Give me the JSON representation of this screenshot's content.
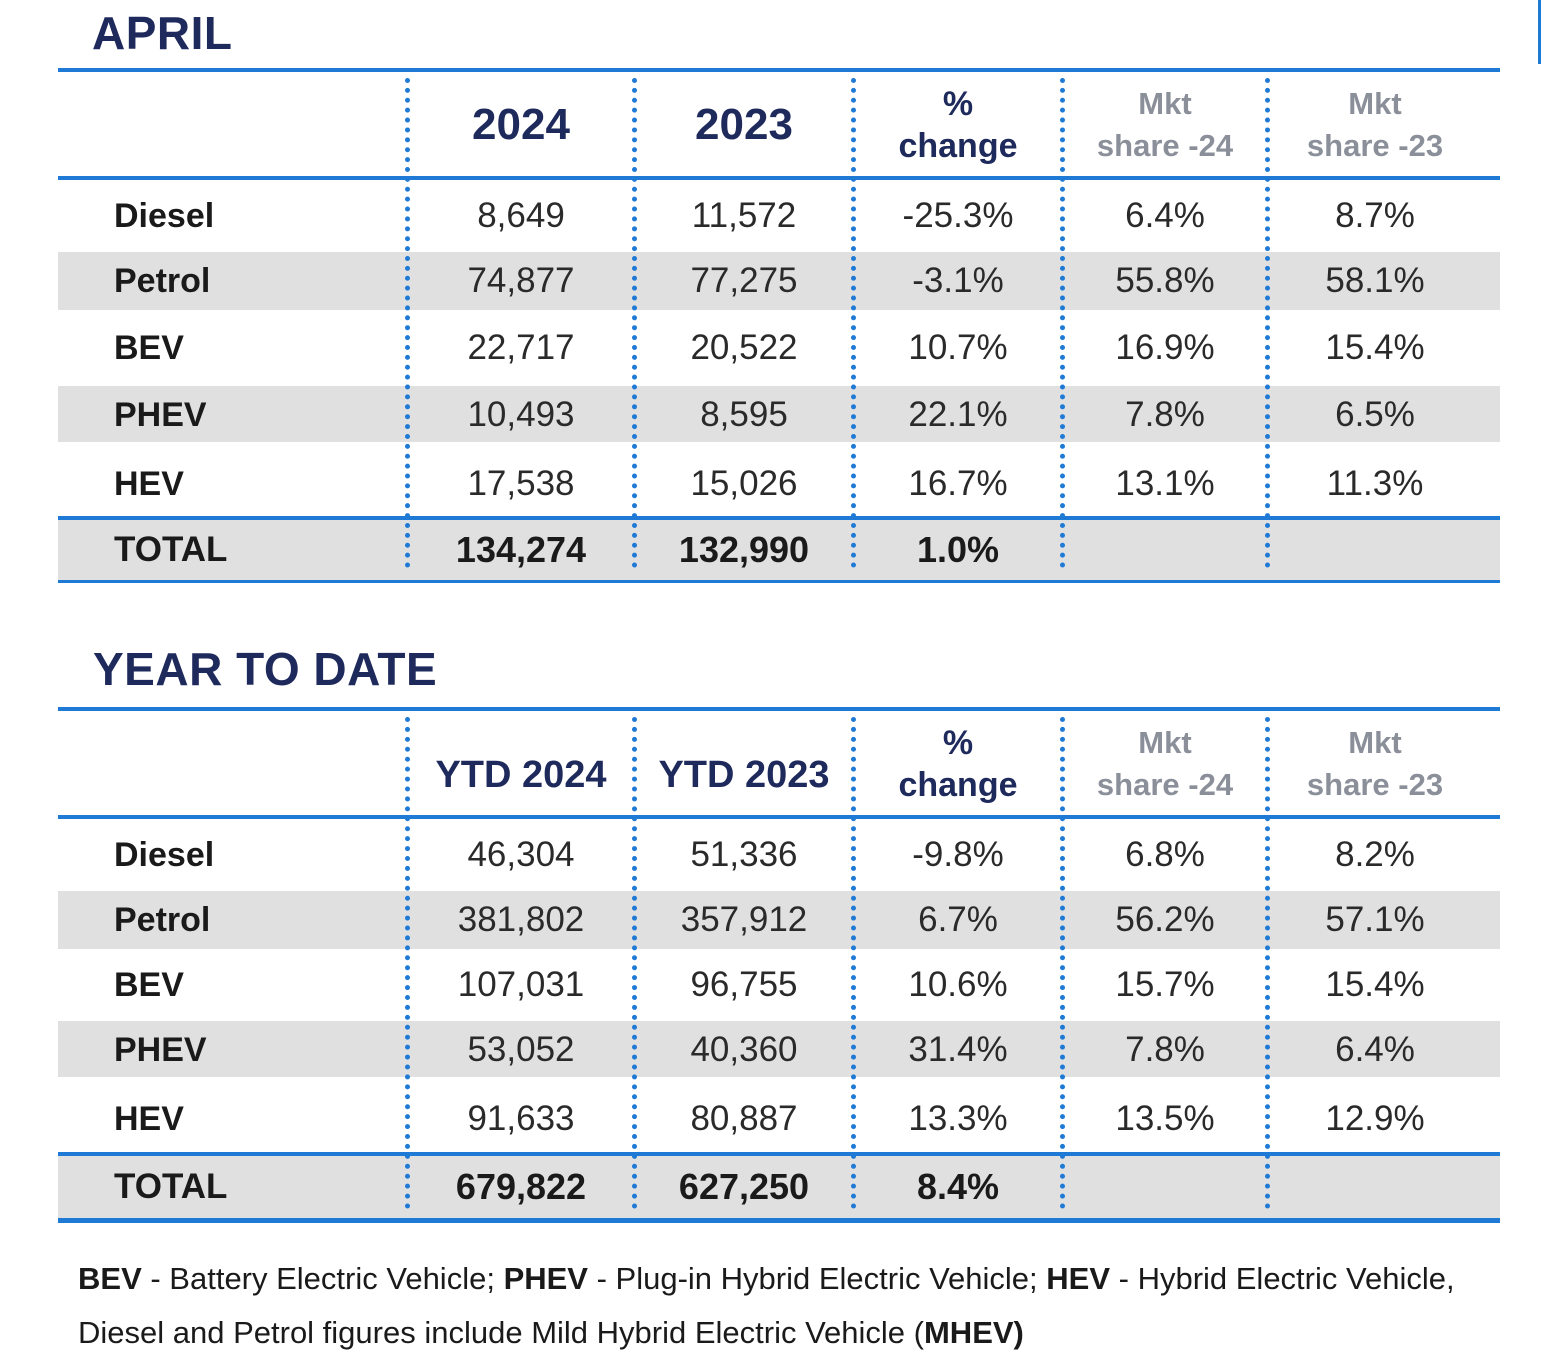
{
  "april": {
    "title": "APRIL",
    "headers": {
      "col1": "2024",
      "col2": "2023",
      "pct_line1": "%",
      "pct_line2": "change",
      "mkt24_line1": "Mkt",
      "mkt24_line2": "share -24",
      "mkt23_line1": "Mkt",
      "mkt23_line2": "share -23"
    },
    "rows": [
      {
        "label": "Diesel",
        "v2024": "8,649",
        "v2023": "11,572",
        "change": "-25.3%",
        "share24": "6.4%",
        "share23": "8.7%"
      },
      {
        "label": "Petrol",
        "v2024": "74,877",
        "v2023": "77,275",
        "change": "-3.1%",
        "share24": "55.8%",
        "share23": "58.1%"
      },
      {
        "label": "BEV",
        "v2024": "22,717",
        "v2023": "20,522",
        "change": "10.7%",
        "share24": "16.9%",
        "share23": "15.4%"
      },
      {
        "label": "PHEV",
        "v2024": "10,493",
        "v2023": "8,595",
        "change": "22.1%",
        "share24": "7.8%",
        "share23": "6.5%"
      },
      {
        "label": "HEV",
        "v2024": "17,538",
        "v2023": "15,026",
        "change": "16.7%",
        "share24": "13.1%",
        "share23": "11.3%"
      }
    ],
    "total": {
      "label": "TOTAL",
      "v2024": "134,274",
      "v2023": "132,990",
      "change": "1.0%"
    }
  },
  "ytd": {
    "title": "YEAR TO DATE",
    "headers": {
      "col1": "YTD 2024",
      "col2": "YTD 2023",
      "pct_line1": "%",
      "pct_line2": "change",
      "mkt24_line1": "Mkt",
      "mkt24_line2": "share -24",
      "mkt23_line1": "Mkt",
      "mkt23_line2": "share -23"
    },
    "rows": [
      {
        "label": "Diesel",
        "v2024": "46,304",
        "v2023": "51,336",
        "change": "-9.8%",
        "share24": "6.8%",
        "share23": "8.2%"
      },
      {
        "label": "Petrol",
        "v2024": "381,802",
        "v2023": "357,912",
        "change": "6.7%",
        "share24": "56.2%",
        "share23": "57.1%"
      },
      {
        "label": "BEV",
        "v2024": "107,031",
        "v2023": "96,755",
        "change": "10.6%",
        "share24": "15.7%",
        "share23": "15.4%"
      },
      {
        "label": "PHEV",
        "v2024": "53,052",
        "v2023": "40,360",
        "change": "31.4%",
        "share24": "7.8%",
        "share23": "6.4%"
      },
      {
        "label": "HEV",
        "v2024": "91,633",
        "v2023": "80,887",
        "change": "13.3%",
        "share24": "13.5%",
        "share23": "12.9%"
      }
    ],
    "total": {
      "label": "TOTAL",
      "v2024": "679,822",
      "v2023": "627,250",
      "change": "8.4%"
    }
  },
  "footnote": {
    "bev_abbr": "BEV",
    "bev_def": " - Battery Electric Vehicle; ",
    "phev_abbr": "PHEV",
    "phev_def": " - Plug-in Hybrid Electric Vehicle; ",
    "hev_abbr": "HEV",
    "hev_def": " - Hybrid Electric Vehicle,",
    "line2_text": "Diesel and Petrol figures include Mild Hybrid Electric Vehicle (",
    "mhev_abbr": "MHEV)"
  },
  "colors": {
    "title_navy": "#1f2a5c",
    "rule_blue": "#1f7ad6",
    "band_grey": "#e0e0e0",
    "muted_header": "#8a8f99"
  }
}
